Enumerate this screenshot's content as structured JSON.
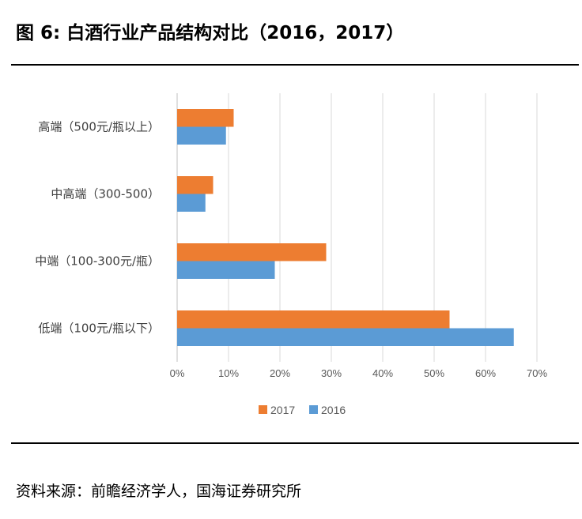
{
  "figure_title": "图 6:  白酒行业产品结构对比（2016，2017）",
  "source": "资料来源：前瞻经济学人，国海证券研究所",
  "chart_data": {
    "type": "bar",
    "orientation": "horizontal",
    "categories": [
      "高端（500元/瓶以上）",
      "中高端（300-500）",
      "中端（100-300元/瓶）",
      "低端（100元/瓶以下）"
    ],
    "series": [
      {
        "name": "2017",
        "color": "#ED7D31",
        "values": [
          11,
          7,
          29,
          53
        ]
      },
      {
        "name": "2016",
        "color": "#5B9BD5",
        "values": [
          9.5,
          5.5,
          19,
          65.5
        ]
      }
    ],
    "xlim": [
      0,
      70
    ],
    "xticks": [
      0,
      10,
      20,
      30,
      40,
      50,
      60,
      70
    ],
    "tick_format": "{v}%",
    "grid": true,
    "legend": "bottom"
  }
}
